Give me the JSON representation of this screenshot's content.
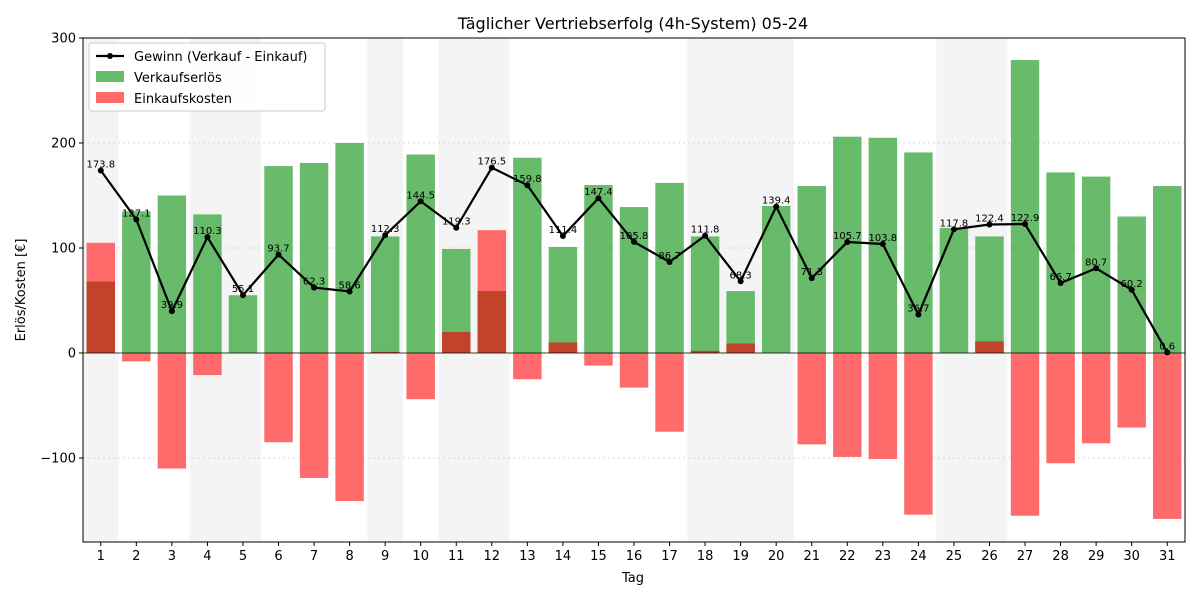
{
  "chart_data": {
    "type": "bar",
    "title": "Täglicher Vertriebserfolg (4h-System) 05-24",
    "xlabel": "Tag",
    "ylabel": "Erlös/Kosten [€]",
    "ylim": [
      -180,
      300
    ],
    "yticks": [
      -100,
      0,
      100,
      200,
      300
    ],
    "grid": true,
    "legend_position": "top-left",
    "categories": [
      "1",
      "2",
      "3",
      "4",
      "5",
      "6",
      "7",
      "8",
      "9",
      "10",
      "11",
      "12",
      "13",
      "14",
      "15",
      "16",
      "17",
      "18",
      "19",
      "20",
      "21",
      "22",
      "23",
      "24",
      "25",
      "26",
      "27",
      "28",
      "29",
      "30",
      "31"
    ],
    "shaded_days": [
      "1",
      "4",
      "5",
      "9",
      "11",
      "12",
      "18",
      "19",
      "20",
      "25",
      "26"
    ],
    "series": [
      {
        "name": "Gewinn (Verkauf - Einkauf)",
        "type": "line",
        "color": "#000000",
        "values": [
          173.8,
          127.1,
          39.9,
          110.3,
          55.1,
          93.7,
          62.3,
          58.6,
          112.3,
          144.5,
          119.3,
          176.5,
          159.8,
          111.4,
          147.4,
          105.8,
          86.7,
          111.8,
          68.3,
          139.4,
          71.3,
          105.7,
          103.8,
          36.7,
          117.8,
          122.4,
          122.9,
          66.7,
          80.7,
          60.2,
          0.6
        ]
      },
      {
        "name": "Verkaufserlös",
        "type": "bar",
        "color": "#4caf50",
        "values": [
          68,
          135,
          150,
          132,
          55,
          178,
          181,
          200,
          111,
          189,
          99,
          59,
          186,
          101,
          160,
          139,
          162,
          111,
          59,
          140,
          159,
          206,
          205,
          191,
          119,
          111,
          279,
          172,
          168,
          130,
          159
        ]
      },
      {
        "name": "Einkaufskosten",
        "type": "bar",
        "color": "#ff5b5b",
        "values": [
          105,
          -8,
          -110,
          -21,
          0,
          -85,
          -119,
          -141,
          1,
          -44,
          20,
          117,
          -25,
          10,
          -12,
          -33,
          -75,
          2,
          9,
          0,
          -87,
          -99,
          -101,
          -154,
          0,
          11,
          -155,
          -105,
          -86,
          -71,
          -158
        ]
      }
    ]
  }
}
